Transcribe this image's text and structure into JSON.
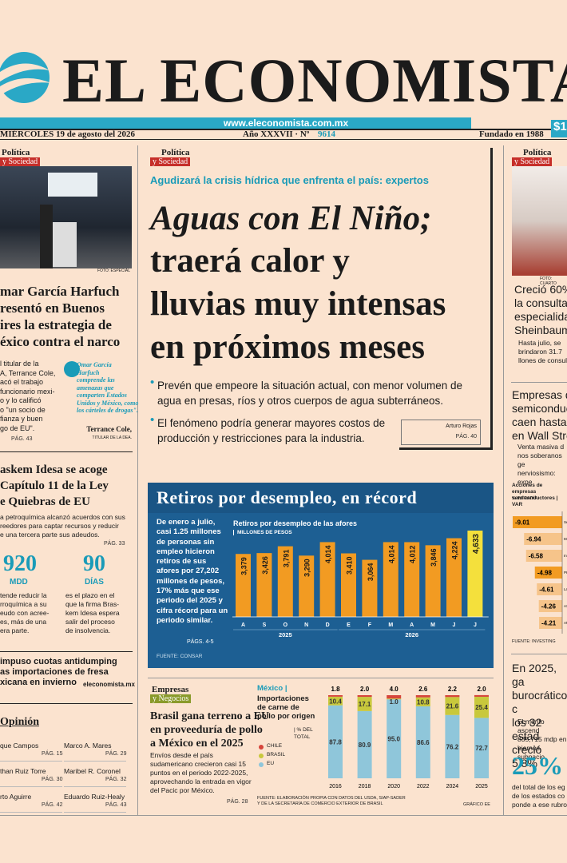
{
  "masthead": {
    "title": "EL ECONOMISTA",
    "url": "www.eleconomista.com.mx",
    "date": "MIÉRCOLES 19 de agosto del 2026",
    "issue": "Año XXXVII · Nº",
    "issue_number": "9614",
    "founded": "Fundado en 1988",
    "price": "$1"
  },
  "left_story": {
    "section": "Política",
    "subsection": "y Sociedad",
    "photo_credit": "FOTO: ESPECIAL",
    "headline": "mar García Harfuch\nresentó en Buenos\nires la estrategia de\néxico contra el narco",
    "body": "l titular de la\nA, Terrance Cole,\nacó el trabajo\nfuncionario mexi-\no y lo calificó\no \"un socio de\nfianza y buen\ngo de EU\".",
    "page": "PÁG. 43",
    "quote": "Omar García\nHarfuch\ncomprende las\namenazas que\ncomparten Estados\nUnidos y México, como\nlos cárteles de drogas\".",
    "quote_author": "Terrance Cole,",
    "quote_role": "TITULAR DE LA DEA."
  },
  "braskem": {
    "headline": "askem Idesa se acoge\nCapítulo 11 de la Ley\ne Quiebras de EU",
    "body": "a petroquímica alcanzó acuerdos con sus\nreedores para captar recursos y reducir\ne una tercera parte sus adeudos.",
    "page": "PÁG. 33",
    "stats": [
      {
        "value": "920",
        "unit": "MDD",
        "text": "tende reducir la\nrroquímica a su\neudo con acree-\nes, más de una\nera parte."
      },
      {
        "value": "90",
        "unit": "DÍAS",
        "text": "es el plazo en el\nque la firma Bras-\nkem Idesa espera\nsalir del proceso\nde insolvencia."
      }
    ]
  },
  "fresa": {
    "headline": "impuso cuotas antidumping\nas importaciones de fresa\nxicana en invierno",
    "source": "eleconomista.mx"
  },
  "opinion": {
    "title": "Opinión",
    "columnists": [
      {
        "name": "que Campos",
        "page": "PÁG. 15"
      },
      {
        "name": "Marco A. Mares",
        "page": "PÁG. 29"
      },
      {
        "name": "than Ruiz Torre",
        "page": "PÁG. 30"
      },
      {
        "name": "Maribel R. Coronel",
        "page": "PÁG. 32"
      },
      {
        "name": "rto Aguirre",
        "page": "PÁG. 42"
      },
      {
        "name": "Eduardo Ruiz-Healy",
        "page": "PÁG. 43"
      }
    ]
  },
  "main_story": {
    "section": "Política",
    "subsection": "y Sociedad",
    "kicker": "Agudizará la crisis hídrica que enfrenta el país: expertos",
    "headline_lead": "Aguas con El Niño;",
    "headline": "traerá calor y\nlluvias muy intensas\nen próximos meses",
    "bullets": [
      "Prevén que empeore la situación actual, con menor volumen de agua en presas, ríos y otros cuerpos de agua subterráneos.",
      "El fenómeno podría generar mayores costos de producción y restricciones para la industria."
    ],
    "author": "Arturo Rojas",
    "page": "PÁG. 40"
  },
  "retiros": {
    "title": "Retiros por desempleo, en récord",
    "text": "De enero a julio, casi 1.25 millones de personas sin empleo hicieron retiros de sus afores por 27,202 millones de pesos, 17% más que ese periodo del 2025 y cifra récord para un periodo similar.",
    "page": "PÁGS. 4-5",
    "source": "FUENTE: CONSAR",
    "chart_title": "Retiros por desempleo de las afores",
    "unit": "MILLONES DE PESOS",
    "color": "#f29b22",
    "highlight_color": "#f4e03c",
    "groups": [
      {
        "label": "2025",
        "categories": [
          "A",
          "S",
          "O",
          "N",
          "D"
        ],
        "values": [
          3379,
          3426,
          3791,
          3290,
          4014
        ],
        "value_labels": [
          "3,379",
          "3,426",
          "3,791",
          "3,290",
          "4,014"
        ]
      },
      {
        "label": "2026",
        "categories": [
          "E",
          "F",
          "M",
          "A",
          "M",
          "J",
          "J"
        ],
        "values": [
          3410,
          3064,
          4014,
          4012,
          3846,
          4224,
          4633
        ],
        "value_labels": [
          "3,410",
          "3,064",
          "4,014",
          "4,012",
          "3,846",
          "4,224",
          "4,633"
        ]
      }
    ]
  },
  "pollo_story": {
    "section": "Empresas",
    "subsection": "y Negocios",
    "headline": "Brasil gana terreno a EU\nen proveeduría de pollo\na México en el 2025",
    "body": "Envíos desde el país sudamericano crecieron casi 15 puntos en el periodo 2022-2025, aprovechando la entrada en vigor del Pacic por México.",
    "page": "PÁG. 28"
  },
  "pollo_chart": {
    "type": "stacked-bar",
    "country": "México |",
    "title": "Importaciones de carne de pollo por origen",
    "unit": "| % DEL TOTAL",
    "categories": [
      "2016",
      "2018",
      "2020",
      "2022",
      "2024",
      "2025"
    ],
    "series": [
      {
        "name": "CHILE",
        "color": "#d6453b",
        "values": [
          1.8,
          2.0,
          4.0,
          2.6,
          2.2,
          2.0
        ],
        "value_labels": [
          "1.8",
          "2.0",
          "4.0",
          "2.6",
          "2.2",
          "2.0"
        ]
      },
      {
        "name": "BRASIL",
        "color": "#c8c83c",
        "values": [
          10.4,
          17.1,
          1.0,
          10.8,
          21.6,
          25.4
        ],
        "value_labels": [
          "10.4",
          "17.1",
          "1.0",
          "10.8",
          "21.6",
          "25.4"
        ]
      },
      {
        "name": "EU",
        "color": "#8fc6da",
        "values": [
          87.8,
          80.9,
          95.0,
          86.6,
          76.2,
          72.7
        ],
        "value_labels": [
          "87.8",
          "80.9",
          "95.0",
          "86.6",
          "76.2",
          "72.7"
        ]
      }
    ],
    "source": "FUENTE: ELABORACIÓN PROPIA CON DATOS DEL USDA, SIAP-SADER\nY DE LA SECRETARÍA DE COMERCIO EXTERIOR DE BRASIL",
    "credit": "GRÁFICO EE"
  },
  "right_story": {
    "section": "Política",
    "subsection": "y Sociedad",
    "photo_credit": "FOTO: CUARTO",
    "headline": "Creció 60%\nla consulta c\nespecialidad\nSheinbaum",
    "bullet": "Hasta julio, se\nbrindaron 31.7\nllones de consul"
  },
  "semis": {
    "headline": "Empresas de\nsemiconducto\ncaen hasta 9\nen Wall Stre",
    "bullet": "Venta masiva d\nnos soberanos ge\nnerviosismo: expe"
  },
  "semis_chart": {
    "type": "bar",
    "title": "Acciones de empresas\nsemiconductores | VAR",
    "unit": "% INTRADÍA",
    "categories": [
      "Se",
      "Mi",
      "Int",
      "PH Se",
      "Las Res",
      "AS",
      "AM"
    ],
    "values": [
      -9.01,
      -6.94,
      -6.58,
      -4.98,
      -4.61,
      -4.26,
      -4.21
    ],
    "colors": [
      "#f29b22",
      "#f6c48a",
      "#f6c48a",
      "#f29b22",
      "#f6c48a",
      "#f6c48a",
      "#f6c48a"
    ],
    "source": "FUENTE: INVESTING"
  },
  "gasto": {
    "headline": "En 2025, ga\nburocrático c\nlos 32 estad\ncreció 5.8%",
    "bullet": "El monto ascend\n835,715 mdp en\nbiernos subnacio",
    "stat": "25%",
    "stat_text": "del total de los eg\nde los estados co\nponde a ese rubro"
  }
}
